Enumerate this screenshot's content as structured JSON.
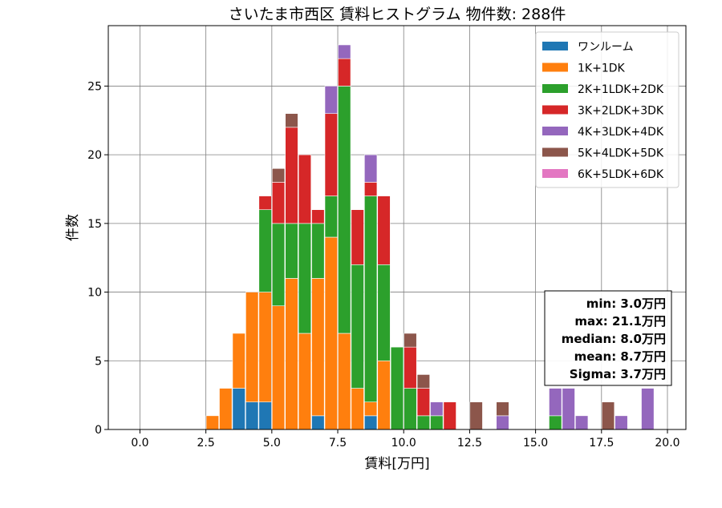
{
  "chart_data": {
    "type": "bar",
    "title": "さいたま市西区 賃料ヒストグラム  物件数: 288件",
    "xlabel": "賃料[万円]",
    "ylabel": "件数",
    "xlim": [
      -1.2,
      20.7
    ],
    "ylim": [
      0,
      29.4
    ],
    "bin_width": 0.5,
    "grid": true,
    "legend_position": "top-right",
    "x_ticks": [
      "0.0",
      "2.5",
      "5.0",
      "7.5",
      "10.0",
      "12.5",
      "15.0",
      "17.5",
      "20.0"
    ],
    "y_ticks": [
      "0",
      "5",
      "10",
      "15",
      "20",
      "25"
    ],
    "bins": [
      2.75,
      3.25,
      3.75,
      4.25,
      4.75,
      5.25,
      5.75,
      6.25,
      6.75,
      7.25,
      7.75,
      8.25,
      8.75,
      9.25,
      9.75,
      10.25,
      10.75,
      11.25,
      11.75,
      12.25,
      12.75,
      13.25,
      13.75,
      14.25,
      14.75,
      15.25,
      15.75,
      16.25,
      16.75,
      17.25,
      17.75,
      18.25,
      18.75,
      19.25,
      19.75
    ],
    "series": [
      {
        "name": "ワンルーム",
        "color": "#1f77b4",
        "values": [
          0,
          0,
          3,
          2,
          2,
          0,
          0,
          0,
          1,
          0,
          0,
          0,
          1,
          0,
          0,
          0,
          0,
          0,
          0,
          0,
          0,
          0,
          0,
          0,
          0,
          0,
          0,
          0,
          0,
          0,
          0,
          0,
          0,
          0,
          0
        ]
      },
      {
        "name": "1K+1DK",
        "color": "#ff7f0e",
        "values": [
          1,
          3,
          4,
          8,
          8,
          9,
          11,
          7,
          10,
          14,
          7,
          3,
          1,
          5,
          0,
          0,
          0,
          0,
          0,
          0,
          0,
          0,
          0,
          0,
          0,
          0,
          0,
          0,
          0,
          0,
          0,
          0,
          0,
          0,
          0
        ]
      },
      {
        "name": "2K+1LDK+2DK",
        "color": "#2ca02c",
        "values": [
          0,
          0,
          0,
          0,
          6,
          6,
          4,
          8,
          4,
          3,
          18,
          9,
          15,
          7,
          6,
          3,
          1,
          1,
          0,
          0,
          0,
          0,
          0,
          0,
          0,
          0,
          1,
          0,
          0,
          0,
          0,
          0,
          0,
          0,
          0
        ]
      },
      {
        "name": "3K+2LDK+3DK",
        "color": "#d62728",
        "values": [
          0,
          0,
          0,
          0,
          1,
          3,
          7,
          5,
          1,
          6,
          2,
          4,
          1,
          5,
          0,
          3,
          2,
          0,
          2,
          0,
          0,
          0,
          0,
          0,
          0,
          0,
          0,
          0,
          0,
          0,
          0,
          0,
          0,
          0,
          0
        ]
      },
      {
        "name": "4K+3LDK+4DK",
        "color": "#9467bd",
        "values": [
          0,
          0,
          0,
          0,
          0,
          0,
          0,
          0,
          0,
          2,
          1,
          0,
          2,
          0,
          0,
          0,
          0,
          1,
          0,
          0,
          0,
          0,
          1,
          0,
          0,
          0,
          2,
          3,
          1,
          0,
          0,
          1,
          0,
          3,
          0
        ]
      },
      {
        "name": "5K+4LDK+5DK",
        "color": "#8c564b",
        "values": [
          0,
          0,
          0,
          0,
          0,
          1,
          1,
          0,
          0,
          0,
          0,
          0,
          0,
          0,
          0,
          1,
          1,
          0,
          0,
          0,
          2,
          0,
          1,
          0,
          0,
          0,
          0,
          0,
          0,
          0,
          2,
          0,
          0,
          0,
          0
        ]
      },
      {
        "name": "6K+5LDK+6DK",
        "color": "#e377c2",
        "values": [
          0,
          0,
          0,
          0,
          0,
          0,
          0,
          0,
          0,
          0,
          0,
          0,
          0,
          0,
          0,
          0,
          0,
          0,
          0,
          0,
          0,
          0,
          0,
          0,
          0,
          0,
          0,
          0,
          0,
          0,
          0,
          0,
          0,
          0,
          0
        ]
      }
    ],
    "stats_lines": [
      "min: 3.0万円",
      "max: 21.1万円",
      "median: 8.0万円",
      "mean: 8.7万円",
      "Sigma: 3.7万円"
    ]
  }
}
